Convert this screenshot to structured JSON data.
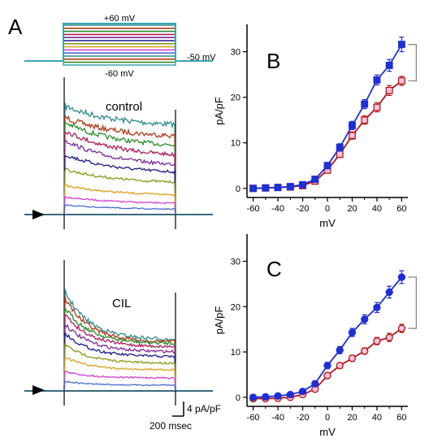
{
  "panel_labels": {
    "a": "A",
    "b": "B",
    "c": "C"
  },
  "protocol": {
    "top": "+60 mV",
    "bottom": "-60 mV",
    "holding": "-50 mV"
  },
  "trace_labels": {
    "control": "control",
    "cil": "CIL"
  },
  "scale_bar": {
    "y": "4 pA/pF",
    "x": "200 msec"
  },
  "colors": {
    "traces": [
      "#2e8b8b",
      "#b23a1a",
      "#2a8a2a",
      "#b01a5a",
      "#7a2a9a",
      "#1a1a8a",
      "#8a9a1a",
      "#e0a020",
      "#d040d0",
      "#4a6ad0"
    ],
    "closed_series": "#1f2fd6",
    "open_series": "#b01818",
    "open_fill": "#ffc0d8"
  },
  "chart_data": [
    {
      "type": "line",
      "panel": "B",
      "xlabel": "mV",
      "ylabel": "pA/pF",
      "x": [
        -60,
        -50,
        -40,
        -30,
        -20,
        -10,
        0,
        10,
        20,
        30,
        40,
        50,
        60
      ],
      "xticks": [
        "-60",
        "-40",
        "-20",
        "0",
        "20",
        "40",
        "60"
      ],
      "yticks": [
        "0",
        "10",
        "20",
        "30"
      ],
      "xlim": [
        -65,
        65
      ],
      "ylim": [
        -2,
        36
      ],
      "series": [
        {
          "marker": "filled-square",
          "values": [
            0,
            0.1,
            0.2,
            0.4,
            0.8,
            2,
            5,
            9,
            13.8,
            18.5,
            23.8,
            27,
            31.6
          ],
          "err": [
            0.4,
            0.4,
            0.4,
            0.4,
            0.5,
            0.6,
            0.7,
            0.8,
            0.9,
            1,
            1.1,
            1.3,
            1.6
          ]
        },
        {
          "marker": "open-square",
          "values": [
            0,
            0.1,
            0.2,
            0.3,
            0.6,
            1.6,
            4,
            7.5,
            11.6,
            15,
            17.8,
            21.5,
            23.6
          ],
          "err": [
            0.4,
            0.4,
            0.4,
            0.4,
            0.5,
            0.6,
            0.6,
            0.7,
            0.8,
            0.9,
            1,
            1.1,
            1
          ]
        }
      ]
    },
    {
      "type": "line",
      "panel": "C",
      "xlabel": "mV",
      "ylabel": "pA/pF",
      "x": [
        -60,
        -50,
        -40,
        -30,
        -20,
        -10,
        0,
        10,
        20,
        30,
        40,
        50,
        60
      ],
      "xticks": [
        "-60",
        "-40",
        "-20",
        "0",
        "20",
        "40",
        "60"
      ],
      "yticks": [
        "0",
        "10",
        "20",
        "30"
      ],
      "xlim": [
        -65,
        65
      ],
      "ylim": [
        -2,
        36
      ],
      "series": [
        {
          "marker": "filled-circle",
          "values": [
            0,
            0.1,
            0.3,
            0.6,
            1.3,
            3,
            7,
            10.4,
            14.3,
            17.2,
            19.8,
            23.2,
            26.5
          ],
          "err": [
            0.4,
            0.4,
            0.4,
            0.4,
            0.5,
            0.6,
            0.7,
            0.8,
            0.9,
            1,
            1.1,
            1.3,
            1.4
          ]
        },
        {
          "marker": "open-circle",
          "values": [
            -0.3,
            -0.3,
            -0.2,
            0,
            0.6,
            1.8,
            4.8,
            7,
            8.6,
            10.2,
            12.4,
            13.2,
            15.2
          ],
          "err": [
            0.4,
            0.4,
            0.4,
            0.4,
            0.5,
            0.5,
            0.6,
            0.6,
            0.7,
            0.7,
            0.8,
            0.9,
            0.9
          ]
        }
      ]
    }
  ]
}
